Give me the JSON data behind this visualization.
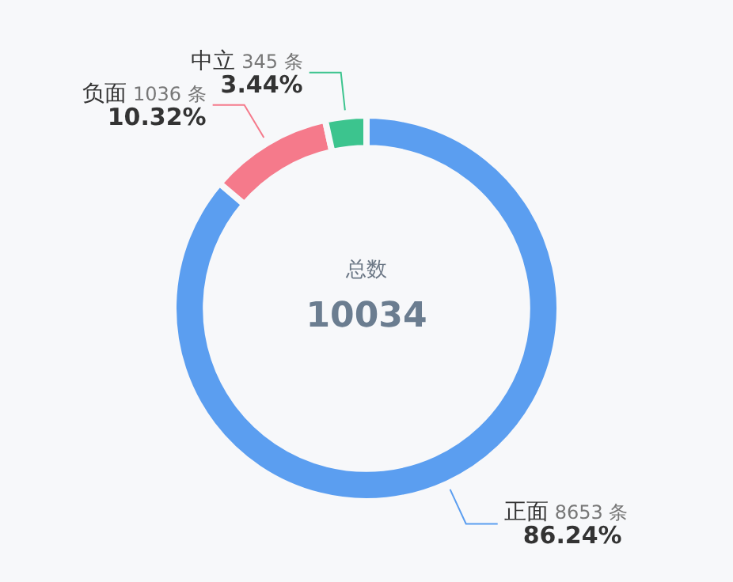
{
  "chart_data": {
    "type": "donut",
    "categories": [
      "正面",
      "负面",
      "中立"
    ],
    "values": [
      8653,
      1036,
      345
    ],
    "colors": [
      "#5b9ef0",
      "#f57a8b",
      "#3cc48e"
    ],
    "value_labels": [
      "8653 条",
      "1036 条",
      "345 条"
    ],
    "annotations": [
      {
        "text": "86.24%",
        "x": "正面"
      },
      {
        "text": "10.32%",
        "x": "负面"
      },
      {
        "text": "3.44%",
        "x": "中立"
      },
      "总数",
      "10034"
    ],
    "legend": false
  }
}
